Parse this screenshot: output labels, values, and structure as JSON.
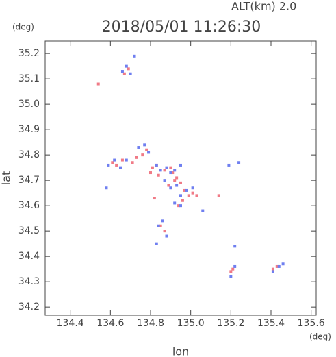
{
  "chart_data": {
    "type": "scatter",
    "title": "2018/05/01 11:26:30",
    "subtitle": "ALT(km) 2.0",
    "x_label": "lon",
    "y_label": "lat",
    "x_unit": "(deg)",
    "y_unit": "(deg)",
    "xlim": [
      134.275,
      135.625
    ],
    "ylim": [
      34.168,
      35.249
    ],
    "xticks": [
      134.4,
      134.6,
      134.8,
      {
        "value": 135,
        "label": "135.0"
      },
      135.2,
      135.4,
      135.6
    ],
    "yticks": [
      34.2,
      34.3,
      34.4,
      34.5,
      34.6,
      34.7,
      34.8,
      34.9,
      {
        "value": 35,
        "label": "35.0"
      },
      35.1,
      35.2
    ],
    "series": [
      {
        "color": "#f07a86",
        "x": [
          134.67,
          134.69,
          134.54,
          134.61,
          134.63,
          134.66,
          134.71,
          134.73,
          134.76,
          134.78,
          134.81,
          134.8,
          134.84,
          134.87,
          134.91,
          134.93,
          134.89,
          134.95,
          134.97,
          134.99,
          134.94,
          134.96,
          135.01,
          134.85,
          134.87,
          135.14,
          135.2,
          135.21,
          135.41,
          135.43,
          134.83,
          134.9,
          135.03,
          134.92,
          134.82
        ],
        "y": [
          35.12,
          35.14,
          35.08,
          34.77,
          34.76,
          34.78,
          34.77,
          34.79,
          34.8,
          34.82,
          34.75,
          34.73,
          34.72,
          34.74,
          34.73,
          34.71,
          34.68,
          34.69,
          34.66,
          34.64,
          34.6,
          34.62,
          34.65,
          34.52,
          34.5,
          34.64,
          34.34,
          34.35,
          34.35,
          34.36,
          34.76,
          34.75,
          34.64,
          34.7,
          34.63
        ]
      },
      {
        "color": "#6f7ff0",
        "x": [
          134.66,
          134.68,
          134.7,
          134.72,
          134.58,
          134.59,
          134.62,
          134.65,
          134.68,
          134.74,
          134.77,
          134.79,
          134.83,
          134.85,
          134.88,
          134.9,
          134.92,
          134.95,
          134.87,
          134.9,
          134.93,
          134.95,
          134.98,
          134.92,
          134.95,
          135.06,
          134.84,
          134.86,
          134.88,
          135.01,
          135.2,
          135.22,
          135.24,
          135.19,
          135.41,
          135.44,
          135.46,
          135.22,
          134.83
        ],
        "y": [
          35.13,
          35.15,
          35.12,
          35.19,
          34.67,
          34.76,
          34.78,
          34.75,
          34.78,
          34.83,
          34.84,
          34.81,
          34.76,
          34.74,
          34.75,
          34.73,
          34.74,
          34.76,
          34.7,
          34.67,
          34.68,
          34.64,
          34.66,
          34.61,
          34.6,
          34.58,
          34.52,
          34.54,
          34.48,
          34.67,
          34.32,
          34.36,
          34.77,
          34.76,
          34.34,
          34.36,
          34.37,
          34.44,
          34.45
        ]
      }
    ]
  }
}
